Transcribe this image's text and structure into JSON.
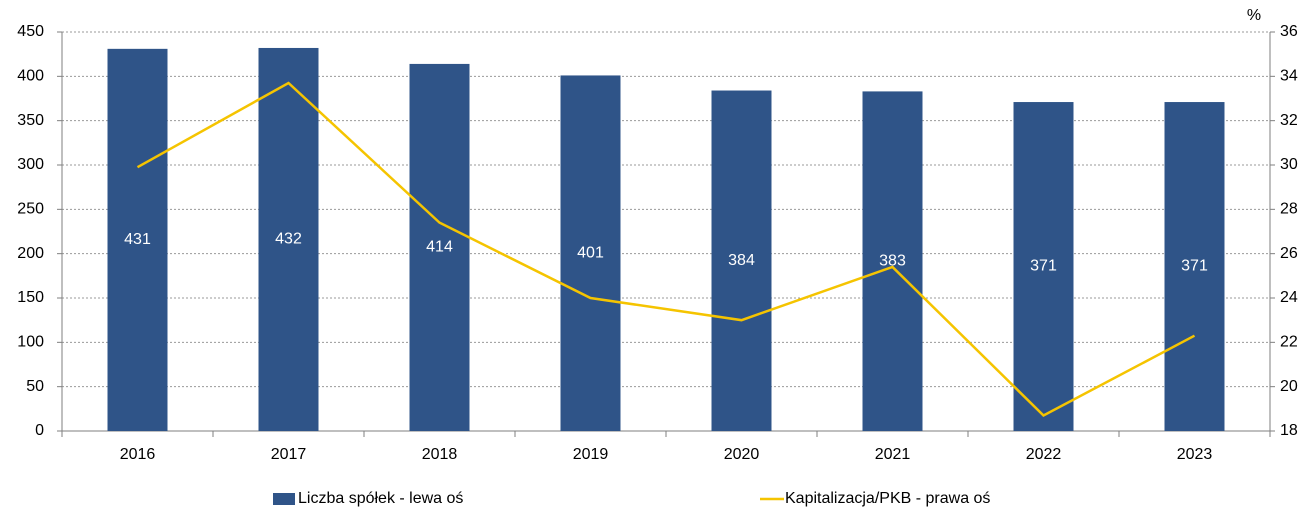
{
  "chart_data": {
    "type": "bar-line",
    "categories": [
      "2016",
      "2017",
      "2018",
      "2019",
      "2020",
      "2021",
      "2022",
      "2023"
    ],
    "series": [
      {
        "name": "Liczba spółek - lewa oś",
        "type": "bar",
        "color": "#2f5488",
        "values": [
          431,
          432,
          414,
          401,
          384,
          383,
          371,
          371
        ]
      },
      {
        "name": "Kapitalizacja/PKB - prawa oś",
        "type": "line",
        "axis": "y2",
        "color": "#f5c400",
        "values": [
          29.9,
          33.7,
          27.4,
          24.0,
          23.0,
          25.4,
          18.7,
          22.3
        ]
      }
    ],
    "y2label": "%",
    "ylim": [
      0,
      450
    ],
    "yticks": [
      0,
      50,
      100,
      150,
      200,
      250,
      300,
      350,
      400,
      450
    ],
    "y2lim": [
      18,
      36
    ],
    "y2ticks": [
      18,
      20,
      22,
      24,
      26,
      28,
      30,
      32,
      34,
      36
    ],
    "grid": true,
    "legend": "bottom"
  }
}
